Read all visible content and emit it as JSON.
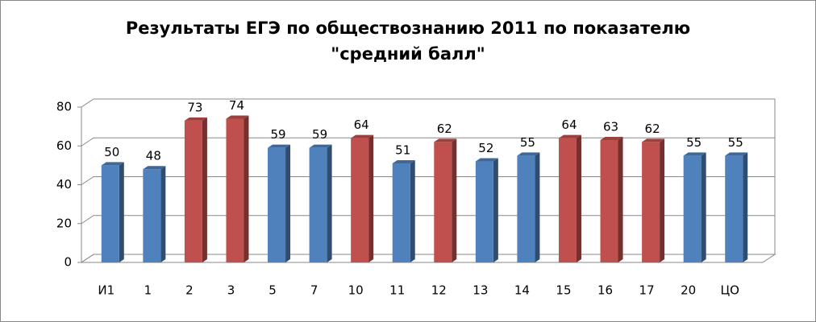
{
  "chart_data": {
    "type": "bar3d",
    "title": "Результаты ЕГЭ по обществознанию 2011 по показателю \"средний балл\"",
    "categories": [
      "И1",
      "1",
      "2",
      "3",
      "5",
      "7",
      "10",
      "11",
      "12",
      "13",
      "14",
      "15",
      "16",
      "17",
      "20",
      "ЦО"
    ],
    "values": [
      50,
      48,
      73,
      74,
      59,
      59,
      64,
      51,
      62,
      52,
      55,
      64,
      63,
      62,
      55,
      55
    ],
    "colors": [
      "#4f81bd",
      "#4f81bd",
      "#c0504d",
      "#c0504d",
      "#4f81bd",
      "#4f81bd",
      "#c0504d",
      "#4f81bd",
      "#c0504d",
      "#4f81bd",
      "#4f81bd",
      "#c0504d",
      "#c0504d",
      "#c0504d",
      "#4f81bd",
      "#4f81bd"
    ],
    "ylim": [
      0,
      80
    ],
    "yticks": [
      0,
      20,
      40,
      60,
      80
    ],
    "grid": true
  }
}
